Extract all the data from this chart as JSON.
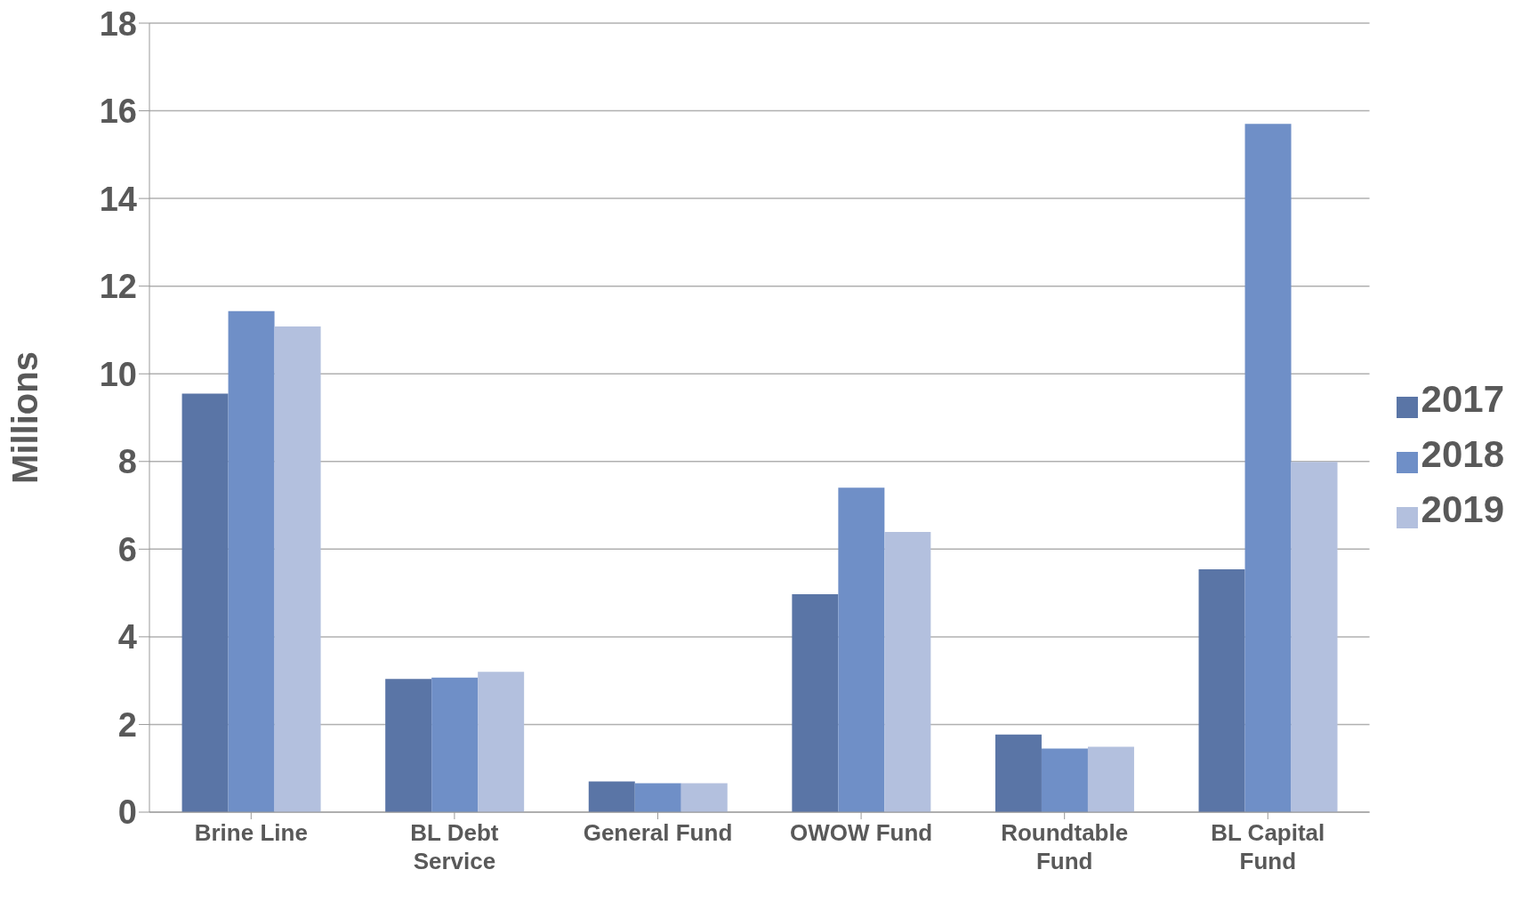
{
  "chart_data": {
    "type": "bar",
    "ylabel": "Millions",
    "categories": [
      "Brine Line",
      "BL Debt Service",
      "General Fund",
      "OWOW Fund",
      "Roundtable Fund",
      "BL Capital Fund"
    ],
    "series": [
      {
        "name": "2017",
        "color": "#5a75a6",
        "values": [
          9.55,
          3.04,
          0.7,
          4.97,
          1.77,
          5.54
        ]
      },
      {
        "name": "2018",
        "color": "#6f8fc7",
        "values": [
          11.43,
          3.07,
          0.66,
          7.4,
          1.45,
          15.7
        ]
      },
      {
        "name": "2019",
        "color": "#b3c0de",
        "values": [
          11.08,
          3.2,
          0.66,
          6.39,
          1.49,
          7.99
        ]
      }
    ],
    "ylim": [
      0,
      18
    ],
    "yticks": [
      0,
      2,
      4,
      6,
      8,
      10,
      12,
      14,
      16,
      18
    ],
    "grid": "y",
    "legend": "right"
  }
}
